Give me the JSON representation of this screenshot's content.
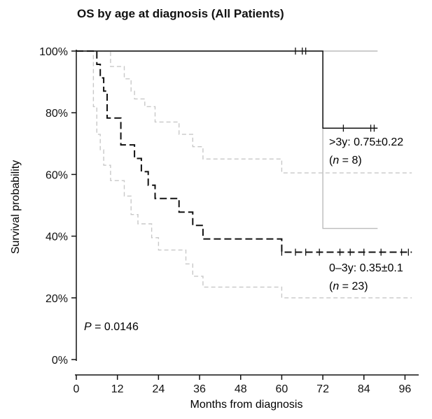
{
  "chart_data": {
    "type": "line",
    "title": "OS by age at diagnosis (All Patients)",
    "xlabel": "Months from diagnosis",
    "ylabel": "Survival probability",
    "xlim": [
      0,
      100
    ],
    "ylim": [
      0,
      100
    ],
    "x_ticks": [
      0,
      12,
      24,
      36,
      48,
      60,
      72,
      84,
      96
    ],
    "y_ticks": [
      {
        "v": 0,
        "label": "0%"
      },
      {
        "v": 20,
        "label": "20%"
      },
      {
        "v": 40,
        "label": "40%"
      },
      {
        "v": 60,
        "label": "60%"
      },
      {
        "v": 80,
        "label": "80%"
      },
      {
        "v": 100,
        "label": "100%"
      }
    ],
    "p_value": {
      "label": "P",
      "text": " = 0.0146"
    },
    "series": [
      {
        "key": "gt3y",
        "label_line1": ">3y: 0.75±0.22",
        "label_line2_parts": [
          "(",
          "n",
          " = 8)"
        ],
        "color": "#111111",
        "style": "solid",
        "steps": [
          [
            0,
            100
          ],
          [
            72,
            100
          ],
          [
            72,
            75
          ],
          [
            88,
            75
          ]
        ],
        "censor_x": [
          64,
          66,
          67,
          78,
          86,
          87
        ],
        "ci_color": "#bbbbbb",
        "ci_style": "solid",
        "ci_upper": [
          [
            0,
            100
          ],
          [
            88,
            100
          ]
        ],
        "ci_lower": [
          [
            0,
            100
          ],
          [
            72,
            100
          ],
          [
            72,
            42.5
          ],
          [
            88,
            42.5
          ]
        ]
      },
      {
        "key": "0to3y",
        "label_line1": "0–3y: 0.35±0.1",
        "label_line2_parts": [
          "(",
          "n",
          " = 23)"
        ],
        "color": "#111111",
        "style": "dashed",
        "steps": [
          [
            0,
            100
          ],
          [
            6,
            100
          ],
          [
            6,
            95.7
          ],
          [
            7,
            95.7
          ],
          [
            7,
            91.3
          ],
          [
            8,
            91.3
          ],
          [
            8,
            87
          ],
          [
            9,
            87
          ],
          [
            9,
            78.3
          ],
          [
            13,
            78.3
          ],
          [
            13,
            69.6
          ],
          [
            17,
            69.6
          ],
          [
            17,
            65.2
          ],
          [
            19,
            65.2
          ],
          [
            19,
            60.9
          ],
          [
            21,
            60.9
          ],
          [
            21,
            56.5
          ],
          [
            23,
            56.5
          ],
          [
            23,
            52.2
          ],
          [
            30,
            52.2
          ],
          [
            30,
            47.8
          ],
          [
            34,
            47.8
          ],
          [
            34,
            43.5
          ],
          [
            37,
            43.5
          ],
          [
            37,
            39.1
          ],
          [
            60,
            39.1
          ],
          [
            60,
            34.8
          ],
          [
            98,
            34.8
          ]
        ],
        "censor_x": [
          60,
          64,
          67,
          71,
          77,
          80,
          84,
          89,
          95,
          97
        ],
        "ci_color": "#c8c8c8",
        "ci_style": "dashed",
        "ci_upper": [
          [
            0,
            100
          ],
          [
            10,
            100
          ],
          [
            10,
            95
          ],
          [
            14,
            95
          ],
          [
            14,
            91
          ],
          [
            16,
            91
          ],
          [
            16,
            87
          ],
          [
            17,
            87
          ],
          [
            17,
            84.5
          ],
          [
            20,
            84.5
          ],
          [
            20,
            82
          ],
          [
            23,
            82
          ],
          [
            23,
            77
          ],
          [
            30,
            77
          ],
          [
            30,
            73
          ],
          [
            34,
            73
          ],
          [
            34,
            69
          ],
          [
            37,
            69
          ],
          [
            37,
            65
          ],
          [
            60,
            65
          ],
          [
            60,
            60.5
          ],
          [
            98,
            60.5
          ]
        ],
        "ci_lower": [
          [
            0,
            100
          ],
          [
            5,
            100
          ],
          [
            5,
            82
          ],
          [
            6,
            82
          ],
          [
            6,
            73
          ],
          [
            7,
            73
          ],
          [
            7,
            68
          ],
          [
            8,
            68
          ],
          [
            8,
            63
          ],
          [
            10,
            63
          ],
          [
            10,
            58
          ],
          [
            14,
            58
          ],
          [
            14,
            53
          ],
          [
            16,
            53
          ],
          [
            16,
            47
          ],
          [
            18,
            47
          ],
          [
            18,
            44
          ],
          [
            22,
            44
          ],
          [
            22,
            39.5
          ],
          [
            24,
            39.5
          ],
          [
            24,
            35.5
          ],
          [
            32,
            35.5
          ],
          [
            32,
            31
          ],
          [
            34,
            31
          ],
          [
            34,
            27
          ],
          [
            37,
            27
          ],
          [
            37,
            23.5
          ],
          [
            60,
            23.5
          ],
          [
            60,
            20
          ],
          [
            98,
            20
          ]
        ]
      }
    ]
  }
}
